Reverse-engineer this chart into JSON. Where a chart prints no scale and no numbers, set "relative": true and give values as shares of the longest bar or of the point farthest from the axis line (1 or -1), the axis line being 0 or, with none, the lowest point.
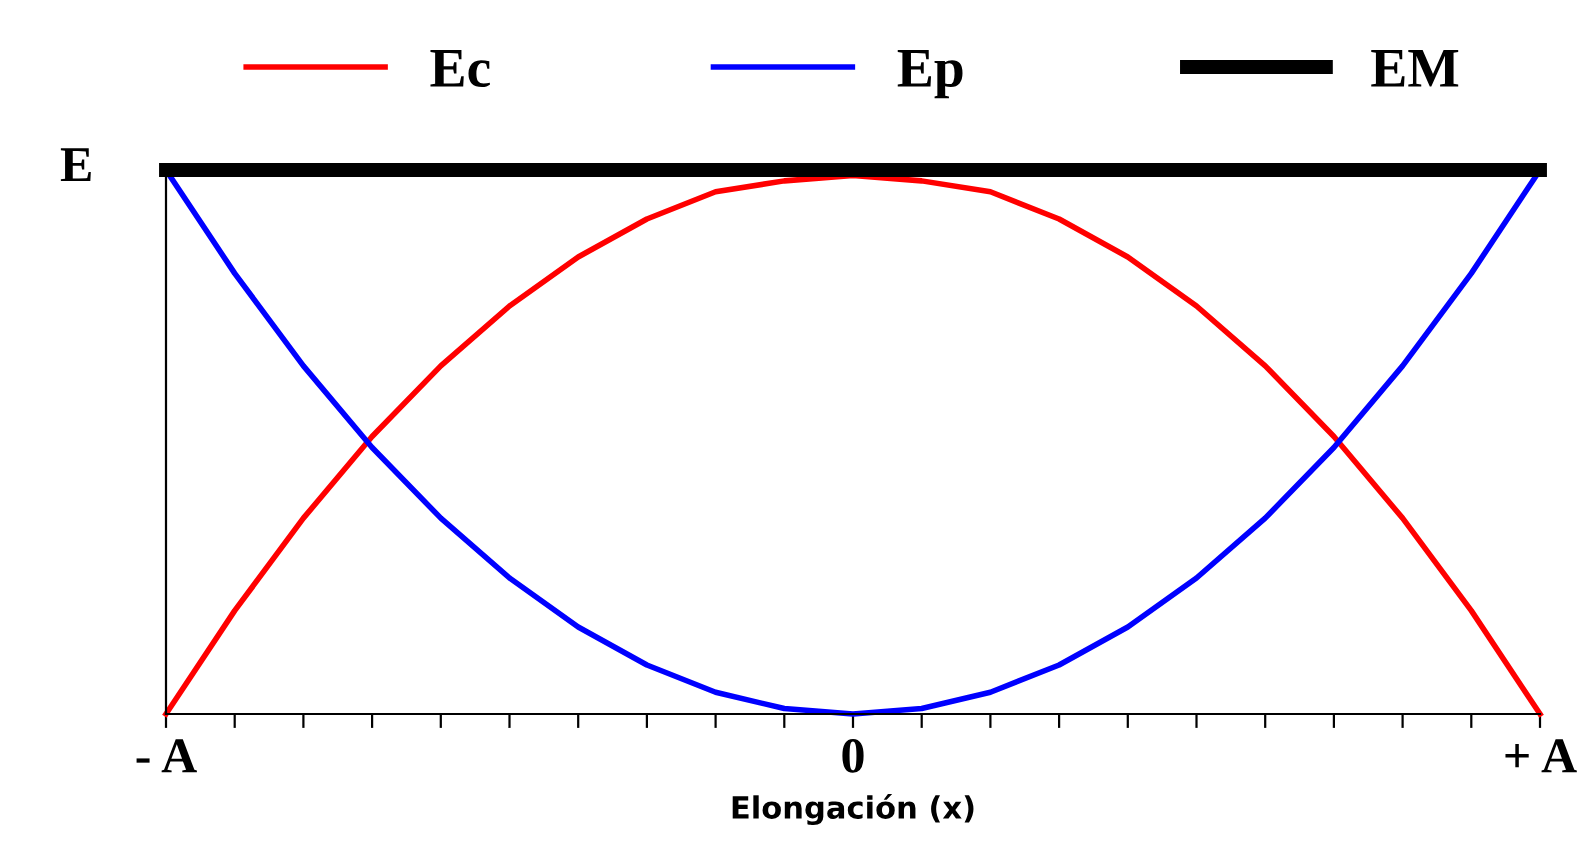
{
  "chart_data": {
    "type": "line",
    "xlabel": "Elongación (x)",
    "ylabel": "E",
    "relative": true,
    "categories": [
      "- A",
      null,
      null,
      null,
      null,
      null,
      null,
      null,
      null,
      null,
      "0",
      null,
      null,
      null,
      null,
      null,
      null,
      null,
      null,
      null,
      "+ A"
    ],
    "series": [
      {
        "name": "Ec",
        "color": "#ff0000",
        "values": [
          0,
          0.19,
          0.36,
          0.51,
          0.64,
          0.75,
          0.84,
          0.91,
          0.96,
          0.98,
          0.99,
          0.98,
          0.96,
          0.91,
          0.84,
          0.75,
          0.64,
          0.51,
          0.36,
          0.19,
          0
        ]
      },
      {
        "name": "Ep",
        "color": "#0000ff",
        "values": [
          1,
          0.81,
          0.64,
          0.49,
          0.36,
          0.25,
          0.16,
          0.09,
          0.04,
          0.01,
          0,
          0.01,
          0.04,
          0.09,
          0.16,
          0.25,
          0.36,
          0.49,
          0.64,
          0.81,
          1
        ]
      },
      {
        "name": "EM",
        "color": "#000000",
        "values": [
          1,
          1,
          1,
          1,
          1,
          1,
          1,
          1,
          1,
          1,
          1,
          1,
          1,
          1,
          1,
          1,
          1,
          1,
          1,
          1,
          1
        ]
      }
    ],
    "legend": "top",
    "grid": false,
    "marker": "none",
    "line_style": "solid"
  }
}
